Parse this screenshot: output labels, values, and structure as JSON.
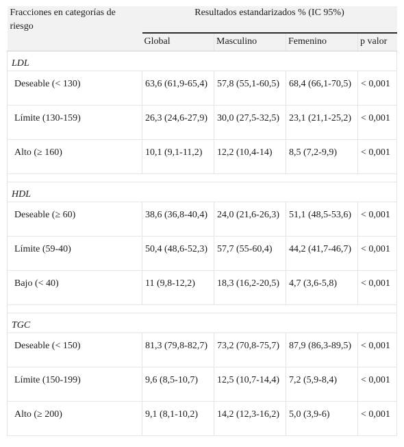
{
  "header": {
    "stub_label": "Fracciones en categorías de riesgo",
    "group_label": "Resultados estandarizados % (IC 95%)",
    "columns": [
      "Global",
      "Masculino",
      "Femenino",
      "p valor"
    ]
  },
  "sections": [
    {
      "title": "LDL",
      "rows": [
        {
          "label": "Deseable (< 130)",
          "global": "63,6 (61,9-65,4)",
          "masculino": "57,8 (55,1-60,5)",
          "femenino": "68,4 (66,1-70,5)",
          "p": "< 0,001"
        },
        {
          "label": "Límite (130-159)",
          "global": "26,3 (24,6-27,9)",
          "masculino": "30,0 (27,5-32,5)",
          "femenino": "23,1 (21,1-25,2)",
          "p": "< 0,001"
        },
        {
          "label": "Alto (≥ 160)",
          "global": "10,1 (9,1-11,2)",
          "masculino": "12,2 (10,4-14)",
          "femenino": "8,5 (7,2-9,9)",
          "p": "< 0,001"
        }
      ]
    },
    {
      "title": "HDL",
      "rows": [
        {
          "label": "Deseable (≥ 60)",
          "global": "38,6 (36,8-40,4)",
          "masculino": "24,0 (21,6-26,3)",
          "femenino": "51,1 (48,5-53,6)",
          "p": "< 0,001"
        },
        {
          "label": "Límite (59-40)",
          "global": "50,4 (48,6-52,3)",
          "masculino": "57,7 (55-60,4)",
          "femenino": "44,2 (41,7-46,7)",
          "p": "< 0,001"
        },
        {
          "label": "Bajo (< 40)",
          "global": "11 (9,8-12,2)",
          "masculino": "18,3 (16,2-20,5)",
          "femenino": "4,7 (3,6-5,8)",
          "p": "< 0,001"
        }
      ]
    },
    {
      "title": "TGC",
      "rows": [
        {
          "label": "Deseable (< 150)",
          "global": "81,3 (79,8-82,7)",
          "masculino": "73,2 (70,8-75,7)",
          "femenino": "87,9 (86,3-89,5)",
          "p": "< 0,001"
        },
        {
          "label": "Límite (150-199)",
          "global": "9,6 (8,5-10,7)",
          "masculino": "12,5 (10,7-14,4)",
          "femenino": "7,2 (5,9-8,4)",
          "p": "< 0,001"
        },
        {
          "label": "Alto (≥ 200)",
          "global": "9,1 (8,1-10,2)",
          "masculino": "14,2 (12,3-16,2)",
          "femenino": "5,0 (3,9-6)",
          "p": "< 0,001"
        }
      ]
    }
  ]
}
